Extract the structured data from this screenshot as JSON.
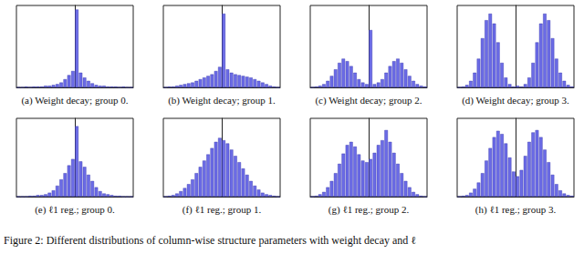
{
  "caption": "Figure 2: Different distributions of column-wise structure parameters with weight decay and ℓ",
  "chart_data": [
    {
      "type": "histogram",
      "title": "(a) Weight decay; group 0.",
      "color": "#6b6be6",
      "tick_labels": false,
      "xlim": [
        -1.5,
        1.5
      ],
      "ylim": [
        0,
        100
      ],
      "bins": [
        -1.5,
        -1.4,
        -1.3,
        -1.2,
        -1.1,
        -1.0,
        -0.9,
        -0.8,
        -0.7,
        -0.6,
        -0.5,
        -0.4,
        -0.3,
        -0.2,
        -0.1,
        0,
        0.1,
        0.2,
        0.3,
        0.4,
        0.5,
        0.6,
        0.7,
        0.8,
        0.9,
        1.0,
        1.1,
        1.2,
        1.3,
        1.4,
        1.5
      ],
      "values": [
        0,
        0,
        1,
        0,
        1,
        1,
        1,
        2,
        2,
        3,
        4,
        6,
        10,
        15,
        20,
        95,
        18,
        12,
        8,
        5,
        3,
        2,
        2,
        1,
        1,
        1,
        0,
        1,
        0,
        0
      ]
    },
    {
      "type": "histogram",
      "title": "(b) Weight decay; group 1.",
      "color": "#6b6be6",
      "tick_labels": false,
      "xlim": [
        -1.5,
        1.5
      ],
      "ylim": [
        0,
        100
      ],
      "bins": [
        -1.5,
        -1.4,
        -1.3,
        -1.2,
        -1.1,
        -1.0,
        -0.9,
        -0.8,
        -0.7,
        -0.6,
        -0.5,
        -0.4,
        -0.3,
        -0.2,
        -0.1,
        0,
        0.1,
        0.2,
        0.3,
        0.4,
        0.5,
        0.6,
        0.7,
        0.8,
        0.9,
        1.0,
        1.1,
        1.2,
        1.3,
        1.4,
        1.5
      ],
      "values": [
        0,
        1,
        1,
        2,
        3,
        4,
        5,
        6,
        8,
        10,
        12,
        14,
        16,
        20,
        25,
        90,
        22,
        18,
        16,
        15,
        14,
        13,
        12,
        10,
        8,
        6,
        4,
        2,
        1,
        0
      ]
    },
    {
      "type": "histogram",
      "title": "(c) Weight decay; group 2.",
      "color": "#6b6be6",
      "tick_labels": false,
      "xlim": [
        -1.5,
        1.5
      ],
      "ylim": [
        0,
        100
      ],
      "bins": [
        -1.5,
        -1.4,
        -1.3,
        -1.2,
        -1.1,
        -1.0,
        -0.9,
        -0.8,
        -0.7,
        -0.6,
        -0.5,
        -0.4,
        -0.3,
        -0.2,
        -0.1,
        0,
        0.1,
        0.2,
        0.3,
        0.4,
        0.5,
        0.6,
        0.7,
        0.8,
        0.9,
        1.0,
        1.1,
        1.2,
        1.3,
        1.4,
        1.5
      ],
      "values": [
        0,
        1,
        2,
        4,
        8,
        14,
        22,
        30,
        35,
        32,
        26,
        18,
        10,
        6,
        4,
        70,
        4,
        6,
        10,
        18,
        26,
        32,
        35,
        30,
        22,
        14,
        8,
        4,
        2,
        1
      ]
    },
    {
      "type": "histogram",
      "title": "(d) Weight decay; group 3.",
      "color": "#6b6be6",
      "tick_labels": false,
      "xlim": [
        -1.5,
        1.5
      ],
      "ylim": [
        0,
        100
      ],
      "bins": [
        -1.5,
        -1.4,
        -1.3,
        -1.2,
        -1.1,
        -1.0,
        -0.9,
        -0.8,
        -0.7,
        -0.6,
        -0.5,
        -0.4,
        -0.3,
        -0.2,
        -0.1,
        0,
        0.1,
        0.2,
        0.3,
        0.4,
        0.5,
        0.6,
        0.7,
        0.8,
        0.9,
        1.0,
        1.1,
        1.2,
        1.3,
        1.4,
        1.5
      ],
      "values": [
        0,
        1,
        3,
        8,
        18,
        35,
        60,
        82,
        90,
        78,
        55,
        30,
        12,
        4,
        1,
        2,
        1,
        4,
        12,
        30,
        55,
        78,
        90,
        82,
        60,
        35,
        18,
        8,
        3,
        1
      ]
    },
    {
      "type": "histogram",
      "title": "(e) ℓ1 reg.; group 0.",
      "color": "#6b6be6",
      "tick_labels": false,
      "xlim": [
        -1.5,
        1.5
      ],
      "ylim": [
        0,
        100
      ],
      "bins": [
        -1.5,
        -1.4,
        -1.3,
        -1.2,
        -1.1,
        -1.0,
        -0.9,
        -0.8,
        -0.7,
        -0.6,
        -0.5,
        -0.4,
        -0.3,
        -0.2,
        -0.1,
        0,
        0.1,
        0.2,
        0.3,
        0.4,
        0.5,
        0.6,
        0.7,
        0.8,
        0.9,
        1.0,
        1.1,
        1.2,
        1.3,
        1.4,
        1.5
      ],
      "values": [
        0,
        0,
        0,
        1,
        1,
        2,
        2,
        3,
        5,
        8,
        14,
        22,
        30,
        40,
        48,
        90,
        45,
        38,
        28,
        20,
        12,
        7,
        4,
        3,
        2,
        1,
        1,
        0,
        0,
        0
      ]
    },
    {
      "type": "histogram",
      "title": "(f) ℓ1 reg.; group 1.",
      "color": "#6b6be6",
      "tick_labels": false,
      "xlim": [
        -1.5,
        1.5
      ],
      "ylim": [
        0,
        100
      ],
      "bins": [
        -1.5,
        -1.4,
        -1.3,
        -1.2,
        -1.1,
        -1.0,
        -0.9,
        -0.8,
        -0.7,
        -0.6,
        -0.5,
        -0.4,
        -0.3,
        -0.2,
        -0.1,
        0,
        0.1,
        0.2,
        0.3,
        0.4,
        0.5,
        0.6,
        0.7,
        0.8,
        0.9,
        1.0,
        1.1,
        1.2,
        1.3,
        1.4,
        1.5
      ],
      "values": [
        0,
        1,
        2,
        4,
        7,
        11,
        16,
        22,
        30,
        38,
        46,
        54,
        62,
        70,
        75,
        72,
        68,
        60,
        52,
        44,
        36,
        28,
        20,
        14,
        9,
        5,
        3,
        2,
        1,
        0
      ]
    },
    {
      "type": "histogram",
      "title": "(g) ℓ1 reg.; group 2.",
      "color": "#6b6be6",
      "tick_labels": false,
      "xlim": [
        -1.5,
        1.5
      ],
      "ylim": [
        0,
        100
      ],
      "bins": [
        -1.5,
        -1.4,
        -1.3,
        -1.2,
        -1.1,
        -1.0,
        -0.9,
        -0.8,
        -0.7,
        -0.6,
        -0.5,
        -0.4,
        -0.3,
        -0.2,
        -0.1,
        0,
        0.1,
        0.2,
        0.3,
        0.4,
        0.5,
        0.6,
        0.7,
        0.8,
        0.9,
        1.0,
        1.1,
        1.2,
        1.3,
        1.4,
        1.5
      ],
      "values": [
        0,
        1,
        3,
        6,
        12,
        20,
        30,
        42,
        55,
        66,
        70,
        64,
        54,
        46,
        44,
        48,
        56,
        66,
        72,
        85,
        70,
        56,
        42,
        30,
        20,
        12,
        6,
        3,
        1,
        0
      ]
    },
    {
      "type": "histogram",
      "title": "(h) ℓ1 reg.; group 3.",
      "color": "#6b6be6",
      "tick_labels": false,
      "xlim": [
        -1.5,
        1.5
      ],
      "ylim": [
        0,
        100
      ],
      "bins": [
        -1.5,
        -1.4,
        -1.3,
        -1.2,
        -1.1,
        -1.0,
        -0.9,
        -0.8,
        -0.7,
        -0.6,
        -0.5,
        -0.4,
        -0.3,
        -0.2,
        -0.1,
        0,
        0.1,
        0.2,
        0.3,
        0.4,
        0.5,
        0.6,
        0.7,
        0.8,
        0.9,
        1.0,
        1.1,
        1.2,
        1.3,
        1.4,
        1.5
      ],
      "values": [
        0,
        1,
        2,
        5,
        10,
        18,
        30,
        46,
        62,
        76,
        84,
        80,
        68,
        50,
        32,
        26,
        34,
        52,
        70,
        82,
        85,
        76,
        60,
        44,
        28,
        16,
        8,
        4,
        2,
        1
      ]
    }
  ]
}
